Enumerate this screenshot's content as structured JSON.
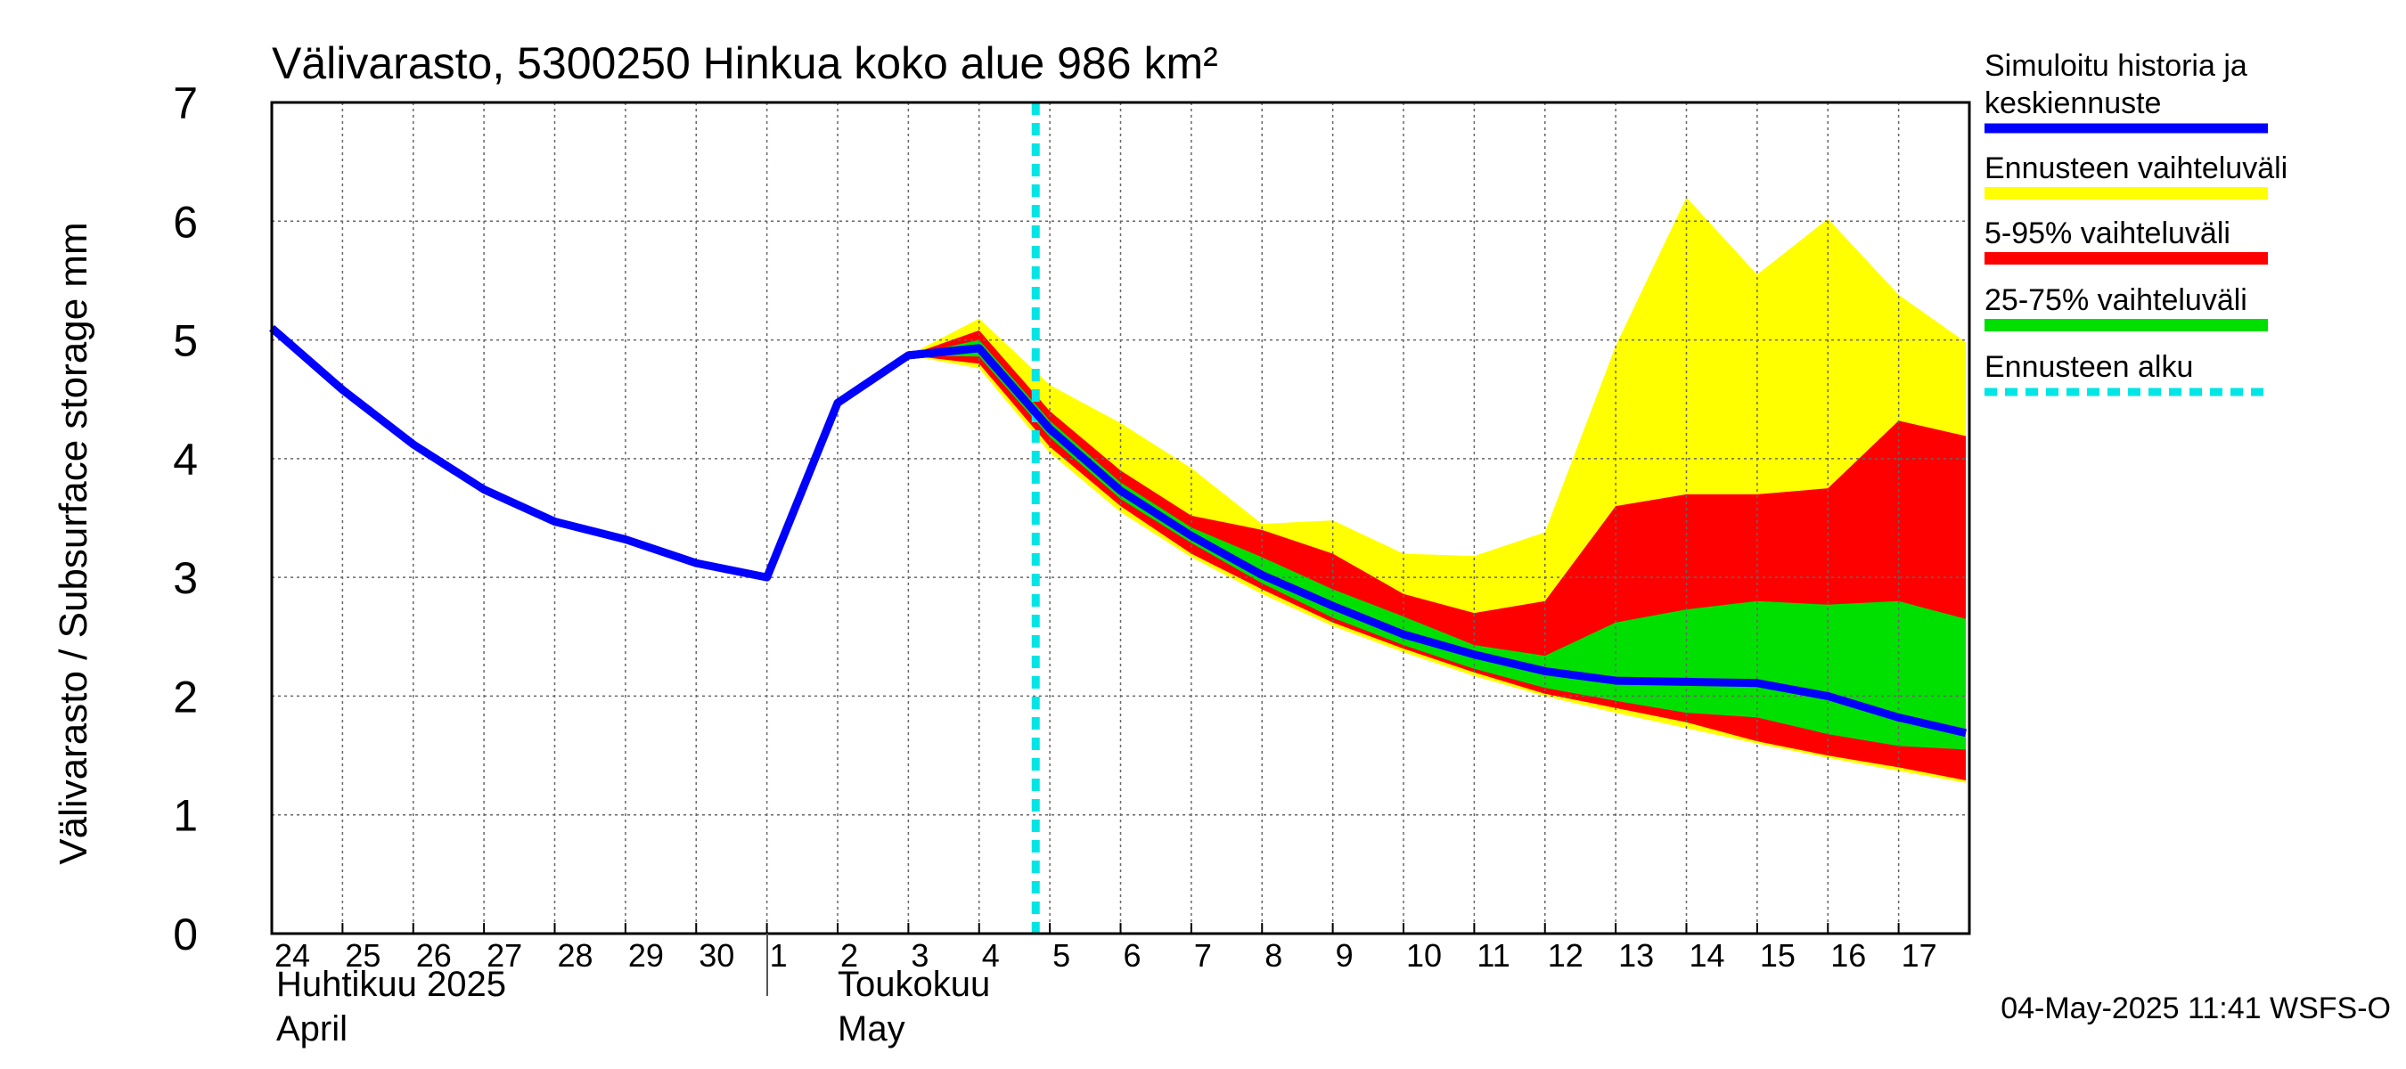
{
  "chart_data": {
    "type": "area",
    "title": "Välivarasto, 5300250 Hinkua koko alue 986 km²",
    "ylabel": "Välivarasto / Subsurface storage  mm",
    "ylim": [
      0,
      7
    ],
    "yticks": [
      "0",
      "1",
      "2",
      "3",
      "4",
      "5",
      "6",
      "7"
    ],
    "x_day_labels": [
      "24",
      "25",
      "26",
      "27",
      "28",
      "29",
      "30",
      "1",
      "2",
      "3",
      "4",
      "5",
      "6",
      "7",
      "8",
      "9",
      "10",
      "11",
      "12",
      "13",
      "14",
      "15",
      "16",
      "17"
    ],
    "month_labels": {
      "april_fi": "Huhtikuu  2025",
      "april_en": "April",
      "may_fi": "Toukokuu",
      "may_en": "May"
    },
    "footer": "04-May-2025 11:41 WSFS-O",
    "grid": true,
    "legend_position": "right",
    "colors": {
      "history": "#0000ff",
      "full_range": "#ffff00",
      "p5_95": "#ff0000",
      "p25_75": "#00e000",
      "forecast_start": "#00e5e5"
    },
    "legend": {
      "history_line1": "Simuloitu historia ja",
      "history_line2": "keskiennuste",
      "full_range": "Ennusteen vaihteluväli",
      "p5_95": "5-95% vaihteluväli",
      "p25_75": "25-75% vaihteluväli",
      "forecast_start": "Ennusteen alku"
    },
    "forecast_start_x": 10.8,
    "history": {
      "x": [
        0,
        1,
        2,
        3,
        4,
        5,
        6,
        7,
        8,
        9,
        10
      ],
      "y": [
        5.1,
        4.58,
        4.12,
        3.74,
        3.47,
        3.32,
        3.12,
        3.0,
        4.47,
        4.87,
        4.93
      ]
    },
    "forecast_x": [
      9,
      10,
      11,
      12,
      13,
      14,
      15,
      16,
      17,
      18,
      19,
      20,
      21,
      22,
      23,
      23.95
    ],
    "bands": {
      "full_max": [
        4.87,
        5.18,
        4.62,
        4.3,
        3.92,
        3.45,
        3.48,
        3.2,
        3.18,
        3.38,
        4.95,
        6.2,
        5.55,
        6.02,
        5.38,
        4.98
      ],
      "full_min": [
        4.87,
        4.76,
        4.05,
        3.55,
        3.17,
        2.86,
        2.59,
        2.37,
        2.17,
        2.0,
        1.86,
        1.73,
        1.6,
        1.48,
        1.37,
        1.27
      ],
      "p95": [
        4.87,
        5.08,
        4.4,
        3.9,
        3.52,
        3.4,
        3.2,
        2.86,
        2.7,
        2.8,
        3.6,
        3.7,
        3.7,
        3.75,
        4.32,
        4.19
      ],
      "p5": [
        4.87,
        4.8,
        4.1,
        3.6,
        3.2,
        2.9,
        2.62,
        2.4,
        2.2,
        2.02,
        1.9,
        1.78,
        1.62,
        1.5,
        1.4,
        1.29
      ],
      "p75": [
        4.87,
        5.0,
        4.32,
        3.8,
        3.42,
        3.17,
        2.9,
        2.67,
        2.43,
        2.34,
        2.62,
        2.73,
        2.8,
        2.77,
        2.8,
        2.65
      ],
      "p25": [
        4.87,
        4.86,
        4.18,
        3.66,
        3.29,
        2.95,
        2.66,
        2.43,
        2.23,
        2.07,
        1.96,
        1.86,
        1.82,
        1.68,
        1.58,
        1.55
      ]
    },
    "median": [
      4.87,
      4.93,
      4.25,
      3.73,
      3.35,
      3.02,
      2.76,
      2.52,
      2.35,
      2.21,
      2.13,
      2.12,
      2.11,
      2.0,
      1.82,
      1.69
    ]
  }
}
